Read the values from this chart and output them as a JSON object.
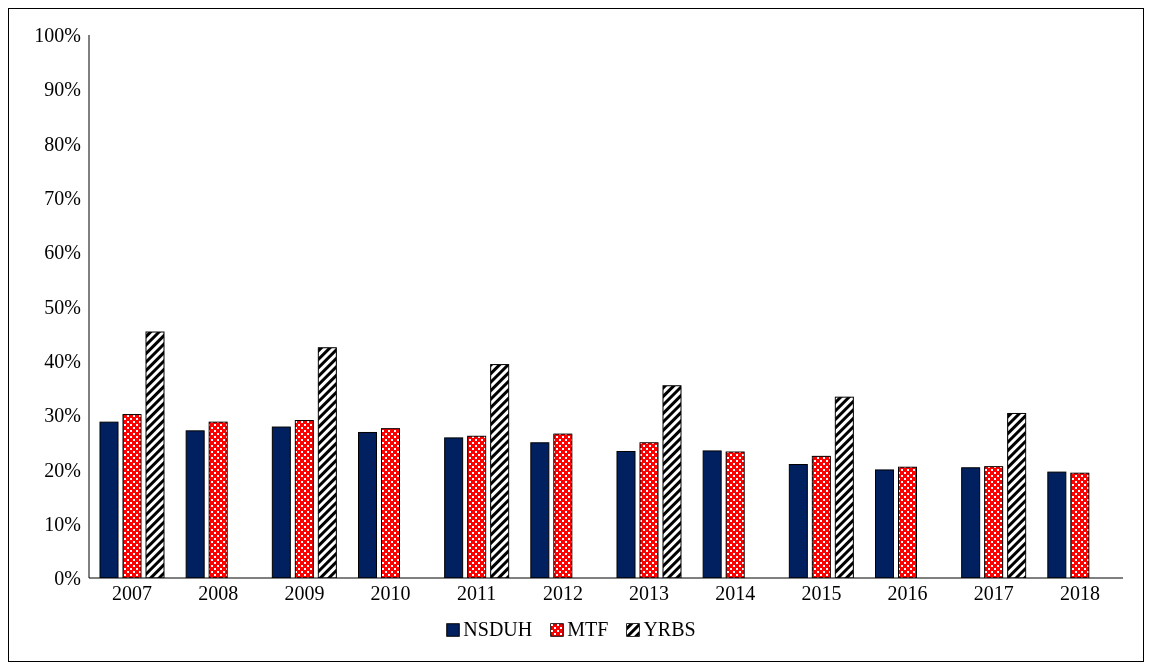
{
  "chart_data": {
    "type": "bar",
    "categories": [
      "2007",
      "2008",
      "2009",
      "2010",
      "2011",
      "2012",
      "2013",
      "2014",
      "2015",
      "2016",
      "2017",
      "2018"
    ],
    "series": [
      {
        "name": "NSDUH",
        "color": "#002060",
        "values": [
          28.7,
          27.1,
          27.8,
          26.8,
          25.8,
          24.9,
          23.3,
          23.4,
          20.9,
          19.9,
          20.3,
          19.5
        ]
      },
      {
        "name": "MTF",
        "color": "#ff0000",
        "values": [
          30.1,
          28.7,
          29.0,
          27.5,
          26.1,
          26.5,
          24.9,
          23.2,
          22.4,
          20.4,
          20.5,
          19.3
        ]
      },
      {
        "name": "YRBS",
        "color": "#000000",
        "values": [
          45.3,
          null,
          42.4,
          null,
          39.3,
          null,
          35.4,
          null,
          33.3,
          null,
          30.3,
          null
        ]
      }
    ],
    "ylim": [
      0,
      100
    ],
    "yticks": [
      {
        "value": 0,
        "label": "0%"
      },
      {
        "value": 10,
        "label": "10%"
      },
      {
        "value": 20,
        "label": "20%"
      },
      {
        "value": 30,
        "label": "30%"
      },
      {
        "value": 40,
        "label": "40%"
      },
      {
        "value": 50,
        "label": "50%"
      },
      {
        "value": 60,
        "label": "60%"
      },
      {
        "value": 70,
        "label": "70%"
      },
      {
        "value": 80,
        "label": "80%"
      },
      {
        "value": 90,
        "label": "90%"
      },
      {
        "value": 100,
        "label": "100%"
      }
    ],
    "grid": false,
    "legend": "bottom"
  }
}
